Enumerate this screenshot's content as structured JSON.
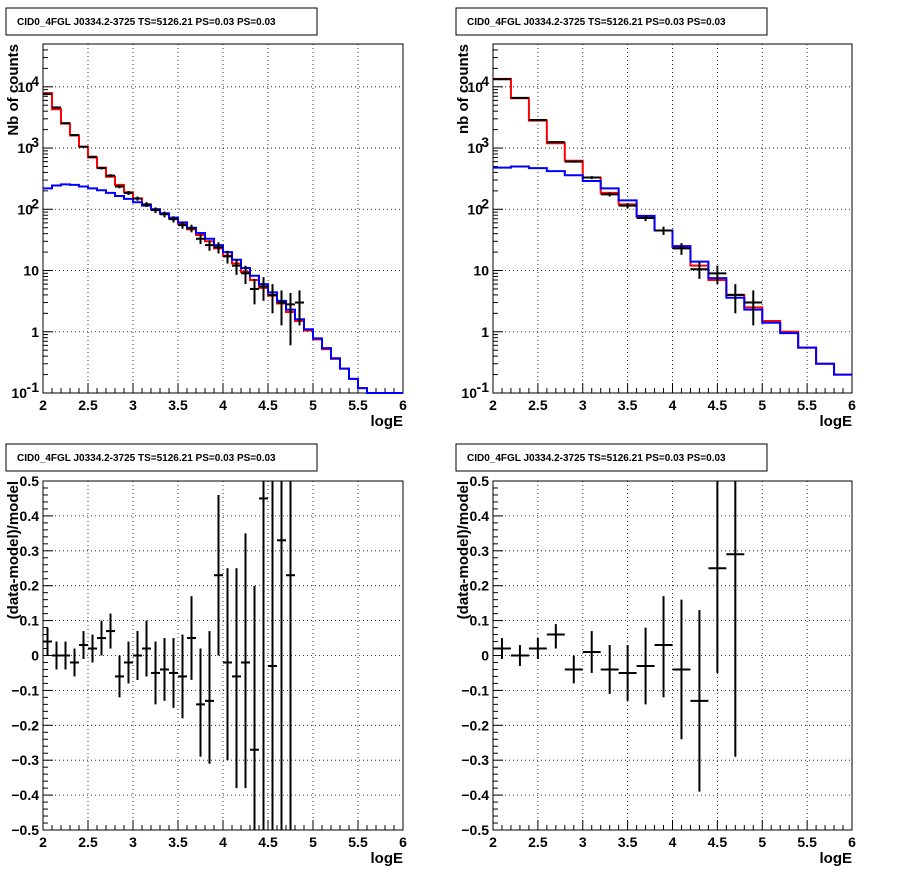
{
  "colors": {
    "total": "#ff0000",
    "background": "#0000ff",
    "data": "#000000",
    "grid": "#000000"
  },
  "chart_data": [
    {
      "type": "line",
      "panel": "top-left",
      "title": "CID0_4FGL J0334.2-3725 TS=5126.21 PS=0.03 PS=0.03",
      "xlabel": "logE",
      "ylabel": "Nb of counts",
      "yscale": "log",
      "xlim": [
        2,
        6
      ],
      "ylim": [
        0.1,
        50000
      ],
      "grid": true,
      "xticks": [
        "2",
        "2.5",
        "3",
        "3.5",
        "4",
        "4.5",
        "5",
        "5.5",
        "6"
      ],
      "yticks": [
        {
          "v": 0.1,
          "label": "10",
          "exp": "-1"
        },
        {
          "v": 1,
          "label": "1",
          "exp": ""
        },
        {
          "v": 10,
          "label": "10",
          "exp": ""
        },
        {
          "v": 100,
          "label": "10",
          "exp": "2"
        },
        {
          "v": 1000,
          "label": "10",
          "exp": "3"
        },
        {
          "v": 10000,
          "label": "10",
          "exp": "4"
        }
      ],
      "bin_edges": [
        2.0,
        2.1,
        2.2,
        2.3,
        2.4,
        2.5,
        2.6,
        2.7,
        2.8,
        2.9,
        3.0,
        3.1,
        3.2,
        3.3,
        3.4,
        3.5,
        3.6,
        3.7,
        3.8,
        3.9,
        4.0,
        4.1,
        4.2,
        4.3,
        4.4,
        4.5,
        4.6,
        4.7,
        4.8,
        4.9,
        5.0,
        5.1,
        5.2,
        5.3,
        5.4,
        5.5,
        5.6,
        5.7,
        5.8,
        5.9,
        6.0
      ],
      "series": [
        {
          "name": "",
          "role": "total",
          "values": [
            7900,
            4300,
            2500,
            1600,
            1050,
            700,
            480,
            340,
            250,
            190,
            150,
            120,
            100,
            84,
            70,
            58,
            47,
            38,
            30,
            23,
            17.5,
            13,
            9.5,
            7,
            5.2,
            3.9,
            2.9,
            2.1,
            1.5,
            1.05,
            0.75,
            0.52,
            0.36,
            0.25,
            0.17,
            0.12,
            0.1,
            0.1,
            0.1,
            0.1
          ]
        },
        {
          "name": "",
          "role": "background",
          "values": [
            220,
            245,
            255,
            250,
            235,
            220,
            205,
            185,
            165,
            148,
            130,
            115,
            100,
            86,
            73,
            61,
            50,
            41,
            33,
            26,
            20,
            15,
            11,
            8.2,
            6,
            4.4,
            3.2,
            2.3,
            1.6,
            1.1,
            0.78,
            0.54,
            0.37,
            0.25,
            0.17,
            0.12,
            0.1,
            0.1,
            0.1,
            0.1
          ]
        },
        {
          "name": "",
          "role": "data",
          "points": [
            {
              "x": 2.05,
              "y": 7600,
              "elo": 7500,
              "ehi": 7700
            },
            {
              "x": 2.15,
              "y": 4600,
              "elo": 4530,
              "ehi": 4670
            },
            {
              "x": 2.25,
              "y": 2550,
              "elo": 2500,
              "ehi": 2600
            },
            {
              "x": 2.35,
              "y": 1630,
              "elo": 1590,
              "ehi": 1670
            },
            {
              "x": 2.45,
              "y": 1050,
              "elo": 1020,
              "ehi": 1080
            },
            {
              "x": 2.55,
              "y": 720,
              "elo": 693,
              "ehi": 747
            },
            {
              "x": 2.65,
              "y": 470,
              "elo": 448,
              "ehi": 492
            },
            {
              "x": 2.75,
              "y": 355,
              "elo": 336,
              "ehi": 374
            },
            {
              "x": 2.85,
              "y": 235,
              "elo": 220,
              "ehi": 250
            },
            {
              "x": 2.95,
              "y": 185,
              "elo": 171,
              "ehi": 199
            },
            {
              "x": 3.05,
              "y": 150,
              "elo": 138,
              "ehi": 162
            },
            {
              "x": 3.15,
              "y": 120,
              "elo": 109,
              "ehi": 131
            },
            {
              "x": 3.25,
              "y": 97,
              "elo": 87,
              "ehi": 107
            },
            {
              "x": 3.35,
              "y": 83,
              "elo": 74,
              "ehi": 92
            },
            {
              "x": 3.45,
              "y": 69,
              "elo": 61,
              "ehi": 77
            },
            {
              "x": 3.55,
              "y": 55,
              "elo": 48,
              "ehi": 62
            },
            {
              "x": 3.65,
              "y": 49,
              "elo": 42,
              "ehi": 56
            },
            {
              "x": 3.75,
              "y": 33,
              "elo": 27,
              "ehi": 39
            },
            {
              "x": 3.85,
              "y": 26,
              "elo": 21,
              "ehi": 31
            },
            {
              "x": 3.95,
              "y": 24,
              "elo": 19,
              "ehi": 29
            },
            {
              "x": 4.05,
              "y": 17,
              "elo": 13,
              "ehi": 21
            },
            {
              "x": 4.15,
              "y": 12,
              "elo": 8.5,
              "ehi": 15.5
            },
            {
              "x": 4.25,
              "y": 9,
              "elo": 6,
              "ehi": 12
            },
            {
              "x": 4.35,
              "y": 5,
              "elo": 2.8,
              "ehi": 7.2
            },
            {
              "x": 4.45,
              "y": 5.5,
              "elo": 3.2,
              "ehi": 7.8
            },
            {
              "x": 4.55,
              "y": 4,
              "elo": 2,
              "ehi": 6
            },
            {
              "x": 4.65,
              "y": 3,
              "elo": 1.27,
              "ehi": 4.73
            },
            {
              "x": 4.75,
              "y": 2.8,
              "elo": 0.6,
              "ehi": 4.3
            },
            {
              "x": 4.85,
              "y": 3,
              "elo": 1.27,
              "ehi": 4.73
            }
          ]
        }
      ]
    },
    {
      "type": "line",
      "panel": "top-right",
      "title": "CID0_4FGL J0334.2-3725 TS=5126.21 PS=0.03 PS=0.03",
      "xlabel": "logE",
      "ylabel": "nb of counts",
      "yscale": "log",
      "xlim": [
        2,
        6
      ],
      "ylim": [
        0.1,
        50000
      ],
      "grid": true,
      "xticks": [
        "2",
        "2.5",
        "3",
        "3.5",
        "4",
        "4.5",
        "5",
        "5.5",
        "6"
      ],
      "yticks": [
        {
          "v": 0.1,
          "label": "10",
          "exp": "-1"
        },
        {
          "v": 1,
          "label": "1",
          "exp": ""
        },
        {
          "v": 10,
          "label": "10",
          "exp": ""
        },
        {
          "v": 100,
          "label": "10",
          "exp": "2"
        },
        {
          "v": 1000,
          "label": "10",
          "exp": "3"
        },
        {
          "v": 10000,
          "label": "10",
          "exp": "4"
        }
      ],
      "bin_edges": [
        2.0,
        2.2,
        2.4,
        2.6,
        2.8,
        3.0,
        3.2,
        3.4,
        3.6,
        3.8,
        4.0,
        4.2,
        4.4,
        4.6,
        4.8,
        5.0,
        5.2,
        5.4,
        5.6,
        5.8,
        6.0
      ],
      "series": [
        {
          "name": "",
          "role": "total",
          "values": [
            13500,
            6500,
            2800,
            1200,
            620,
            330,
            185,
            120,
            76,
            45,
            24,
            12,
            7,
            4,
            2.5,
            1.5,
            1,
            0.55,
            0.3,
            0.2
          ]
        },
        {
          "name": "",
          "role": "background",
          "values": [
            480,
            500,
            470,
            420,
            360,
            290,
            220,
            140,
            78,
            45,
            25,
            14,
            7.5,
            3.6,
            2.3,
            1.4,
            0.95,
            0.55,
            0.3,
            0.2
          ]
        },
        {
          "name": "",
          "role": "data",
          "points": [
            {
              "x": 2.1,
              "y": 13300,
              "elo": 13185,
              "ehi": 13415
            },
            {
              "x": 2.3,
              "y": 6600,
              "elo": 6519,
              "ehi": 6681
            },
            {
              "x": 2.5,
              "y": 2870,
              "elo": 2816,
              "ehi": 2924
            },
            {
              "x": 2.7,
              "y": 1250,
              "elo": 1215,
              "ehi": 1285
            },
            {
              "x": 2.9,
              "y": 600,
              "elo": 576,
              "ehi": 624
            },
            {
              "x": 3.1,
              "y": 330,
              "elo": 312,
              "ehi": 348
            },
            {
              "x": 3.3,
              "y": 175,
              "elo": 162,
              "ehi": 188
            },
            {
              "x": 3.5,
              "y": 115,
              "elo": 104,
              "ehi": 126
            },
            {
              "x": 3.7,
              "y": 72,
              "elo": 64,
              "ehi": 80
            },
            {
              "x": 3.9,
              "y": 45,
              "elo": 38,
              "ehi": 52
            },
            {
              "x": 4.1,
              "y": 23,
              "elo": 18,
              "ehi": 28
            },
            {
              "x": 4.3,
              "y": 10.5,
              "elo": 7.3,
              "ehi": 13.7
            },
            {
              "x": 4.5,
              "y": 9,
              "elo": 6,
              "ehi": 12
            },
            {
              "x": 4.7,
              "y": 4,
              "elo": 2,
              "ehi": 6
            },
            {
              "x": 4.9,
              "y": 3,
              "elo": 1.27,
              "ehi": 4.73
            }
          ]
        }
      ]
    },
    {
      "type": "scatter",
      "panel": "bottom-left",
      "title": "CID0_4FGL J0334.2-3725 TS=5126.21 PS=0.03 PS=0.03",
      "xlabel": "logE",
      "ylabel": "(data-model)/model",
      "xlim": [
        2,
        6
      ],
      "ylim": [
        -0.5,
        0.5
      ],
      "grid": true,
      "xticks": [
        "2",
        "2.5",
        "3",
        "3.5",
        "4",
        "4.5",
        "5",
        "5.5",
        "6"
      ],
      "yticks": [
        {
          "v": -0.5,
          "label": "−0.5"
        },
        {
          "v": -0.4,
          "label": "−0.4"
        },
        {
          "v": -0.3,
          "label": "−0.3"
        },
        {
          "v": -0.2,
          "label": "−0.2"
        },
        {
          "v": -0.1,
          "label": "−0.1"
        },
        {
          "v": 0,
          "label": "0"
        },
        {
          "v": 0.1,
          "label": "0.1"
        },
        {
          "v": 0.2,
          "label": "0.2"
        },
        {
          "v": 0.3,
          "label": "0.3"
        },
        {
          "v": 0.4,
          "label": "0.4"
        },
        {
          "v": 0.5,
          "label": "0.5"
        }
      ],
      "series": [
        {
          "name": "",
          "role": "data",
          "points": [
            {
              "x": 2.05,
              "y": 0.04,
              "elo": 0.0,
              "ehi": 0.08
            },
            {
              "x": 2.15,
              "y": 0.0,
              "elo": -0.04,
              "ehi": 0.04
            },
            {
              "x": 2.25,
              "y": 0.0,
              "elo": -0.04,
              "ehi": 0.04
            },
            {
              "x": 2.35,
              "y": -0.02,
              "elo": -0.06,
              "ehi": 0.02
            },
            {
              "x": 2.45,
              "y": 0.03,
              "elo": -0.01,
              "ehi": 0.07
            },
            {
              "x": 2.55,
              "y": 0.02,
              "elo": -0.02,
              "ehi": 0.06
            },
            {
              "x": 2.65,
              "y": 0.05,
              "elo": 0.0,
              "ehi": 0.1
            },
            {
              "x": 2.75,
              "y": 0.07,
              "elo": 0.02,
              "ehi": 0.12
            },
            {
              "x": 2.85,
              "y": -0.06,
              "elo": -0.12,
              "ehi": 0.0
            },
            {
              "x": 2.95,
              "y": -0.02,
              "elo": -0.08,
              "ehi": 0.04
            },
            {
              "x": 3.05,
              "y": 0.0,
              "elo": -0.07,
              "ehi": 0.07
            },
            {
              "x": 3.15,
              "y": 0.02,
              "elo": -0.06,
              "ehi": 0.1
            },
            {
              "x": 3.25,
              "y": -0.05,
              "elo": -0.14,
              "ehi": 0.04
            },
            {
              "x": 3.35,
              "y": -0.04,
              "elo": -0.13,
              "ehi": 0.05
            },
            {
              "x": 3.45,
              "y": -0.05,
              "elo": -0.15,
              "ehi": 0.05
            },
            {
              "x": 3.55,
              "y": -0.06,
              "elo": -0.18,
              "ehi": 0.06
            },
            {
              "x": 3.65,
              "y": 0.05,
              "elo": -0.07,
              "ehi": 0.17
            },
            {
              "x": 3.75,
              "y": -0.14,
              "elo": -0.29,
              "ehi": 0.02
            },
            {
              "x": 3.85,
              "y": -0.13,
              "elo": -0.31,
              "ehi": 0.07
            },
            {
              "x": 3.95,
              "y": 0.23,
              "elo": 0.0,
              "ehi": 0.46
            },
            {
              "x": 4.05,
              "y": -0.02,
              "elo": -0.3,
              "ehi": 0.25
            },
            {
              "x": 4.15,
              "y": -0.06,
              "elo": -0.38,
              "ehi": 0.25
            },
            {
              "x": 4.25,
              "y": -0.02,
              "elo": -0.38,
              "ehi": 0.35
            },
            {
              "x": 4.35,
              "y": -0.27,
              "elo": -0.5,
              "ehi": 0.2
            },
            {
              "x": 4.45,
              "y": 0.45,
              "elo": -0.5,
              "ehi": 0.5
            },
            {
              "x": 4.55,
              "y": -0.03,
              "elo": -0.5,
              "ehi": 0.5
            },
            {
              "x": 4.65,
              "y": 0.33,
              "elo": -0.5,
              "ehi": 0.5
            },
            {
              "x": 4.75,
              "y": 0.23,
              "elo": -0.5,
              "ehi": 0.5
            }
          ]
        }
      ]
    },
    {
      "type": "scatter",
      "panel": "bottom-right",
      "title": "CID0_4FGL J0334.2-3725 TS=5126.21 PS=0.03 PS=0.03",
      "xlabel": "logE",
      "ylabel": "(data-model)/model",
      "xlim": [
        2,
        6
      ],
      "ylim": [
        -0.5,
        0.5
      ],
      "grid": true,
      "xticks": [
        "2",
        "2.5",
        "3",
        "3.5",
        "4",
        "4.5",
        "5",
        "5.5",
        "6"
      ],
      "yticks": [
        {
          "v": -0.5,
          "label": "−0.5"
        },
        {
          "v": -0.4,
          "label": "−0.4"
        },
        {
          "v": -0.3,
          "label": "−0.3"
        },
        {
          "v": -0.2,
          "label": "−0.2"
        },
        {
          "v": -0.1,
          "label": "−0.1"
        },
        {
          "v": 0,
          "label": "0"
        },
        {
          "v": 0.1,
          "label": "0.1"
        },
        {
          "v": 0.2,
          "label": "0.2"
        },
        {
          "v": 0.3,
          "label": "0.3"
        },
        {
          "v": 0.4,
          "label": "0.4"
        },
        {
          "v": 0.5,
          "label": "0.5"
        }
      ],
      "series": [
        {
          "name": "",
          "role": "data",
          "points": [
            {
              "x": 2.1,
              "y": 0.02,
              "elo": -0.01,
              "ehi": 0.05
            },
            {
              "x": 2.3,
              "y": 0.0,
              "elo": -0.03,
              "ehi": 0.03
            },
            {
              "x": 2.5,
              "y": 0.02,
              "elo": -0.01,
              "ehi": 0.05
            },
            {
              "x": 2.7,
              "y": 0.06,
              "elo": 0.02,
              "ehi": 0.09
            },
            {
              "x": 2.9,
              "y": -0.04,
              "elo": -0.08,
              "ehi": 0.0
            },
            {
              "x": 3.1,
              "y": 0.01,
              "elo": -0.05,
              "ehi": 0.07
            },
            {
              "x": 3.3,
              "y": -0.04,
              "elo": -0.11,
              "ehi": 0.03
            },
            {
              "x": 3.5,
              "y": -0.05,
              "elo": -0.13,
              "ehi": 0.03
            },
            {
              "x": 3.7,
              "y": -0.03,
              "elo": -0.14,
              "ehi": 0.08
            },
            {
              "x": 3.9,
              "y": 0.03,
              "elo": -0.12,
              "ehi": 0.17
            },
            {
              "x": 4.1,
              "y": -0.04,
              "elo": -0.24,
              "ehi": 0.16
            },
            {
              "x": 4.3,
              "y": -0.13,
              "elo": -0.39,
              "ehi": 0.13
            },
            {
              "x": 4.5,
              "y": 0.25,
              "elo": -0.05,
              "ehi": 0.5
            },
            {
              "x": 4.7,
              "y": 0.29,
              "elo": -0.29,
              "ehi": 0.5
            }
          ]
        }
      ]
    }
  ]
}
